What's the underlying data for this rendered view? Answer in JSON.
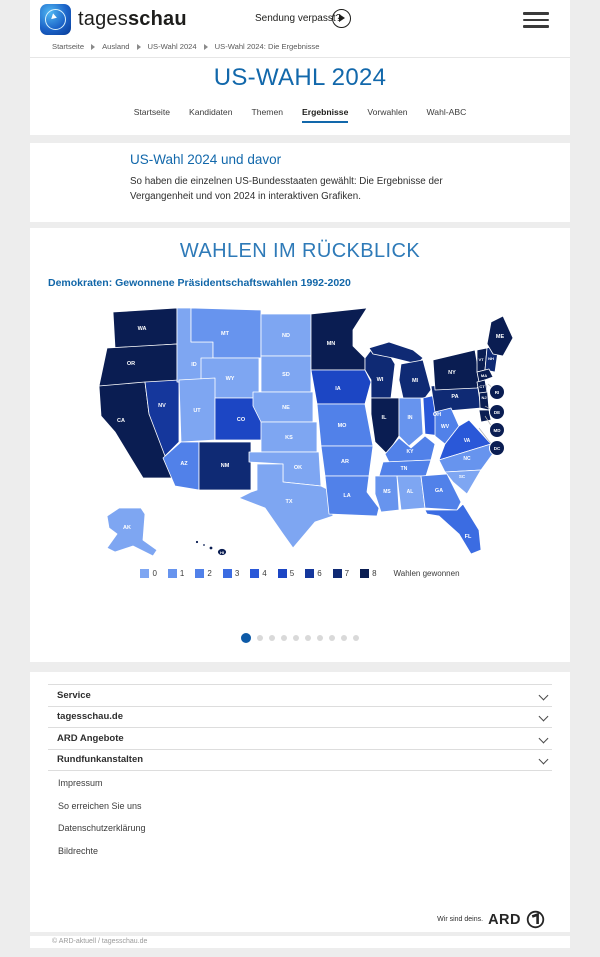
{
  "header": {
    "brand_prefix": "tages",
    "brand_suffix": "schau",
    "missed_show": "Sendung verpasst?"
  },
  "breadcrumb": {
    "items": [
      "Startseite",
      "Ausland",
      "US-Wahl 2024",
      "US-Wahl 2024: Die Ergebnisse"
    ]
  },
  "page": {
    "title": "US-WAHL 2024"
  },
  "tabs": [
    {
      "label": "Startseite",
      "active": false
    },
    {
      "label": "Kandidaten",
      "active": false
    },
    {
      "label": "Themen",
      "active": false
    },
    {
      "label": "Ergebnisse",
      "active": true
    },
    {
      "label": "Vorwahlen",
      "active": false
    },
    {
      "label": "Wahl-ABC",
      "active": false
    }
  ],
  "teaser_card": {
    "title": "US-Wahl 2024 und davor",
    "body": "So haben die einzelnen US-Bundesstaaten gewählt: Die Ergebnisse der Vergangenheit und von 2024 in interaktiven Grafiken."
  },
  "chart_data": {
    "type": "heatmap",
    "subtype": "us-choropleth-map",
    "title": "WAHLEN IM RÜCKBLICK",
    "subtitle": "Demokraten: Gewonnene Präsidentschaftswahlen 1992-2020",
    "legend": {
      "values": [
        0,
        1,
        2,
        3,
        4,
        5,
        6,
        7,
        8
      ],
      "colors": [
        "#7ea6f2",
        "#6794ee",
        "#5181e9",
        "#3b6ce2",
        "#2a58d8",
        "#1c46c4",
        "#15379c",
        "#0f2a74",
        "#0a1d52"
      ],
      "label": "Wahlen gewonnen"
    },
    "states": [
      {
        "id": "WA",
        "wins": 8
      },
      {
        "id": "OR",
        "wins": 8
      },
      {
        "id": "CA",
        "wins": 8
      },
      {
        "id": "NV",
        "wins": 6
      },
      {
        "id": "ID",
        "wins": 0
      },
      {
        "id": "MT",
        "wins": 1
      },
      {
        "id": "WY",
        "wins": 0
      },
      {
        "id": "UT",
        "wins": 0
      },
      {
        "id": "CO",
        "wins": 5
      },
      {
        "id": "AZ",
        "wins": 2
      },
      {
        "id": "NM",
        "wins": 7
      },
      {
        "id": "ND",
        "wins": 0
      },
      {
        "id": "SD",
        "wins": 0
      },
      {
        "id": "NE",
        "wins": 0
      },
      {
        "id": "KS",
        "wins": 0
      },
      {
        "id": "OK",
        "wins": 0
      },
      {
        "id": "TX",
        "wins": 0
      },
      {
        "id": "MN",
        "wins": 8
      },
      {
        "id": "IA",
        "wins": 5
      },
      {
        "id": "MO",
        "wins": 2
      },
      {
        "id": "AR",
        "wins": 2
      },
      {
        "id": "LA",
        "wins": 2
      },
      {
        "id": "WI",
        "wins": 7
      },
      {
        "id": "IL",
        "wins": 8
      },
      {
        "id": "IN",
        "wins": 1
      },
      {
        "id": "MI",
        "wins": 7
      },
      {
        "id": "OH",
        "wins": 4
      },
      {
        "id": "KY",
        "wins": 2
      },
      {
        "id": "TN",
        "wins": 2
      },
      {
        "id": "MS",
        "wins": 1
      },
      {
        "id": "AL",
        "wins": 0
      },
      {
        "id": "GA",
        "wins": 2
      },
      {
        "id": "FL",
        "wins": 3
      },
      {
        "id": "SC",
        "wins": 0
      },
      {
        "id": "NC",
        "wins": 1
      },
      {
        "id": "VA",
        "wins": 4
      },
      {
        "id": "WV",
        "wins": 2
      },
      {
        "id": "PA",
        "wins": 7
      },
      {
        "id": "NY",
        "wins": 8
      },
      {
        "id": "NJ",
        "wins": 8
      },
      {
        "id": "VT",
        "wins": 8
      },
      {
        "id": "NH",
        "wins": 7
      },
      {
        "id": "MA",
        "wins": 8
      },
      {
        "id": "CT",
        "wins": 8
      },
      {
        "id": "ME",
        "wins": 8
      },
      {
        "id": "RI",
        "wins": 8
      },
      {
        "id": "DE",
        "wins": 8
      },
      {
        "id": "MD",
        "wins": 8
      },
      {
        "id": "DC",
        "wins": 8
      },
      {
        "id": "AK",
        "wins": 0
      },
      {
        "id": "HI",
        "wins": 8
      }
    ]
  },
  "carousel": {
    "dot_count": 10,
    "active_index": 0
  },
  "footer": {
    "accordions": [
      "Service",
      "tagesschau.de",
      "ARD Angebote",
      "Rundfunkanstalten"
    ],
    "links": [
      "Impressum",
      "So erreichen Sie uns",
      "Datenschutzerklärung",
      "Bildrechte"
    ],
    "slogan": "Wir sind deins.",
    "ard": "ARD",
    "copyright": "© ARD-aktuell / tagesschau.de"
  }
}
